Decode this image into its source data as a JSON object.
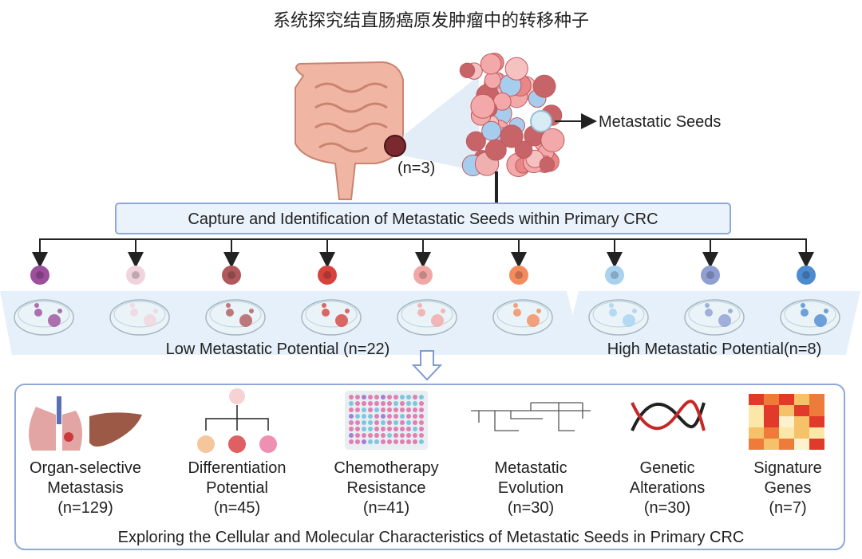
{
  "title": "系统探究结直肠癌原发肿瘤中的转移种子",
  "top": {
    "sample_count": "(n=3)",
    "seeds_label": "Metastatic Seeds",
    "capture_box": "Capture and Identification of Metastatic Seeds within Primary CRC"
  },
  "potential": {
    "low_label": "Low Metastatic Potential (n=22)",
    "high_label": "High Metastatic Potential(n=8)",
    "cell_colors": [
      "#9c4f9c",
      "#f1d3de",
      "#b0595c",
      "#d6433d",
      "#f2a7a7",
      "#f38b5c",
      "#a8d2f0",
      "#8f9fd2",
      "#4d8bd0"
    ]
  },
  "characteristics": [
    {
      "line1": "Organ-selective",
      "line2": "Metastasis",
      "count": "(n=129)",
      "icon": "lung-liver-icon"
    },
    {
      "line1": "Differentiation",
      "line2": "Potential",
      "count": "(n=45)",
      "icon": "differentiation-tree-icon"
    },
    {
      "line1": "Chemotherapy",
      "line2": "Resistance",
      "count": "(n=41)",
      "icon": "well-plate-icon"
    },
    {
      "line1": "Metastatic",
      "line2": "Evolution",
      "count": "(n=30)",
      "icon": "phylogenetic-tree-icon"
    },
    {
      "line1": "Genetic",
      "line2": "Alterations",
      "count": "(n=30)",
      "icon": "dna-icon"
    },
    {
      "line1": "Signature",
      "line2": "Genes",
      "count": "(n=7)",
      "icon": "heatmap-icon"
    }
  ],
  "footer": "Exploring the Cellular and Molecular Characteristics of Metastatic Seeds in Primary CRC",
  "colors": {
    "box_fill": "#eaf2fb",
    "box_border": "#8ea9d8",
    "band": "#e6f0fa"
  }
}
